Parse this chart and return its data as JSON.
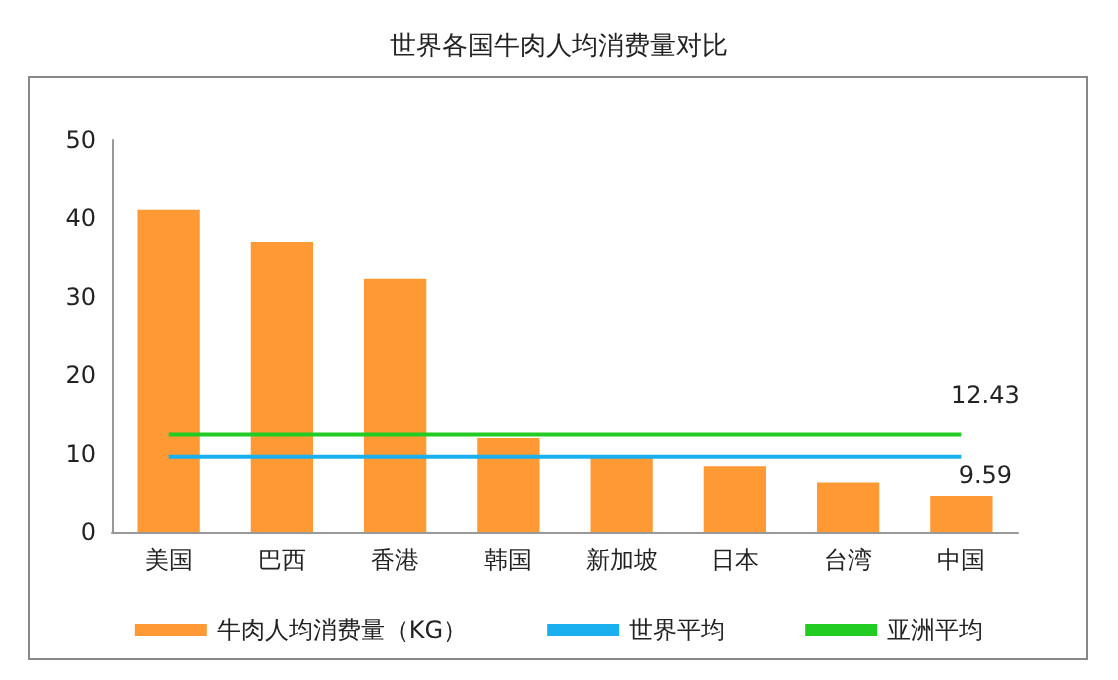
{
  "chart_data": {
    "type": "bar",
    "title": "世界各国牛肉人均消费量对比",
    "categories": [
      "美国",
      "巴西",
      "香港",
      "韩国",
      "新加坡",
      "日本",
      "台湾",
      "中国"
    ],
    "series": [
      {
        "name": "牛肉人均消费量（KG）",
        "color": "#ff9933",
        "values": [
          41.1,
          37.0,
          32.3,
          12.0,
          9.8,
          8.4,
          6.3,
          4.6
        ]
      },
      {
        "name": "世界平均",
        "type": "line",
        "color": "#1ab0f0",
        "values": [
          9.59,
          9.59,
          9.59,
          9.59,
          9.59,
          9.59,
          9.59,
          9.59
        ],
        "value_labels": [
          null,
          null,
          null,
          null,
          null,
          null,
          null,
          "9.59"
        ]
      },
      {
        "name": "亚洲平均",
        "type": "line",
        "color": "#22cc22",
        "values": [
          12.43,
          12.43,
          12.43,
          12.43,
          12.43,
          12.43,
          12.43,
          12.43
        ],
        "value_labels": [
          null,
          null,
          null,
          null,
          null,
          null,
          null,
          "12.43"
        ]
      }
    ],
    "ylim": [
      0,
      50
    ],
    "yticks": [
      0,
      10,
      20,
      30,
      40,
      50
    ],
    "grid": false,
    "legend": "bottom",
    "marker": "none"
  }
}
